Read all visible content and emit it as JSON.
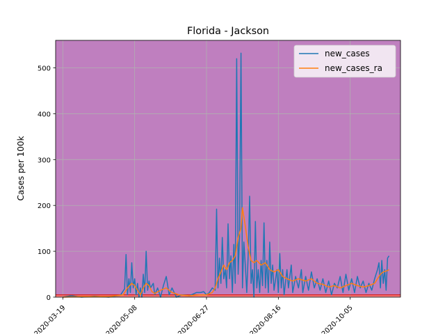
{
  "chart_data": {
    "type": "line",
    "title": "Florida - Jackson",
    "xlabel": "",
    "ylabel": "Cases per 100k",
    "x_ticks": [
      "2020-03-19",
      "2020-05-08",
      "2020-06-27",
      "2020-08-16",
      "2020-10-05"
    ],
    "x_range": [
      "2020-03-14",
      "2020-11-09"
    ],
    "ylim": [
      0,
      560
    ],
    "y_ticks": [
      0,
      100,
      200,
      300,
      400,
      500
    ],
    "grid": true,
    "legend_position": "top-right",
    "background_band": {
      "color": "#bf7fbf",
      "from": 5,
      "to": 560
    },
    "low_band": {
      "color": "#ff8080",
      "from": 0,
      "to": 5
    },
    "threshold_line": {
      "value": 5,
      "color": "#d62728"
    },
    "colors": {
      "new_cases": "#1f77b4",
      "new_cases_ra": "#ff7f0e"
    },
    "series": [
      {
        "name": "new_cases",
        "points": [
          [
            "2020-03-19",
            0
          ],
          [
            "2020-03-25",
            3
          ],
          [
            "2020-04-01",
            0
          ],
          [
            "2020-04-10",
            2
          ],
          [
            "2020-04-20",
            0
          ],
          [
            "2020-04-28",
            4
          ],
          [
            "2020-05-01",
            18
          ],
          [
            "2020-05-02",
            93
          ],
          [
            "2020-05-03",
            5
          ],
          [
            "2020-05-04",
            40
          ],
          [
            "2020-05-05",
            10
          ],
          [
            "2020-05-06",
            75
          ],
          [
            "2020-05-07",
            20
          ],
          [
            "2020-05-08",
            40
          ],
          [
            "2020-05-09",
            5
          ],
          [
            "2020-05-10",
            30
          ],
          [
            "2020-05-11",
            0
          ],
          [
            "2020-05-12",
            20
          ],
          [
            "2020-05-13",
            0
          ],
          [
            "2020-05-14",
            50
          ],
          [
            "2020-05-15",
            10
          ],
          [
            "2020-05-16",
            100
          ],
          [
            "2020-05-17",
            15
          ],
          [
            "2020-05-18",
            35
          ],
          [
            "2020-05-19",
            20
          ],
          [
            "2020-05-21",
            30
          ],
          [
            "2020-05-22",
            5
          ],
          [
            "2020-05-24",
            20
          ],
          [
            "2020-05-26",
            0
          ],
          [
            "2020-05-28",
            25
          ],
          [
            "2020-05-30",
            45
          ],
          [
            "2020-06-01",
            5
          ],
          [
            "2020-06-03",
            20
          ],
          [
            "2020-06-06",
            0
          ],
          [
            "2020-06-10",
            5
          ],
          [
            "2020-06-15",
            3
          ],
          [
            "2020-06-20",
            10
          ],
          [
            "2020-06-23",
            10
          ],
          [
            "2020-06-25",
            12
          ],
          [
            "2020-06-27",
            5
          ],
          [
            "2020-06-29",
            10
          ],
          [
            "2020-07-01",
            20
          ],
          [
            "2020-07-03",
            15
          ],
          [
            "2020-07-04",
            192
          ],
          [
            "2020-07-05",
            20
          ],
          [
            "2020-07-06",
            85
          ],
          [
            "2020-07-07",
            30
          ],
          [
            "2020-07-08",
            130
          ],
          [
            "2020-07-09",
            40
          ],
          [
            "2020-07-10",
            60
          ],
          [
            "2020-07-11",
            20
          ],
          [
            "2020-07-12",
            160
          ],
          [
            "2020-07-13",
            40
          ],
          [
            "2020-07-14",
            90
          ],
          [
            "2020-07-15",
            10
          ],
          [
            "2020-07-16",
            115
          ],
          [
            "2020-07-17",
            30
          ],
          [
            "2020-07-18",
            520
          ],
          [
            "2020-07-19",
            50
          ],
          [
            "2020-07-20",
            130
          ],
          [
            "2020-07-21",
            532
          ],
          [
            "2020-07-22",
            20
          ],
          [
            "2020-07-23",
            120
          ],
          [
            "2020-07-24",
            70
          ],
          [
            "2020-07-25",
            10
          ],
          [
            "2020-07-26",
            90
          ],
          [
            "2020-07-27",
            220
          ],
          [
            "2020-07-28",
            30
          ],
          [
            "2020-07-29",
            60
          ],
          [
            "2020-07-30",
            0
          ],
          [
            "2020-07-31",
            165
          ],
          [
            "2020-08-01",
            20
          ],
          [
            "2020-08-02",
            60
          ],
          [
            "2020-08-03",
            10
          ],
          [
            "2020-08-04",
            80
          ],
          [
            "2020-08-05",
            25
          ],
          [
            "2020-08-06",
            162
          ],
          [
            "2020-08-07",
            20
          ],
          [
            "2020-08-08",
            80
          ],
          [
            "2020-08-09",
            10
          ],
          [
            "2020-08-10",
            120
          ],
          [
            "2020-08-11",
            30
          ],
          [
            "2020-08-12",
            70
          ],
          [
            "2020-08-13",
            15
          ],
          [
            "2020-08-15",
            60
          ],
          [
            "2020-08-16",
            10
          ],
          [
            "2020-08-17",
            95
          ],
          [
            "2020-08-18",
            20
          ],
          [
            "2020-08-19",
            60
          ],
          [
            "2020-08-20",
            5
          ],
          [
            "2020-08-22",
            60
          ],
          [
            "2020-08-23",
            20
          ],
          [
            "2020-08-25",
            70
          ],
          [
            "2020-08-26",
            10
          ],
          [
            "2020-08-28",
            45
          ],
          [
            "2020-08-30",
            20
          ],
          [
            "2020-09-01",
            60
          ],
          [
            "2020-09-02",
            10
          ],
          [
            "2020-09-04",
            45
          ],
          [
            "2020-09-06",
            15
          ],
          [
            "2020-09-08",
            55
          ],
          [
            "2020-09-10",
            20
          ],
          [
            "2020-09-12",
            40
          ],
          [
            "2020-09-14",
            15
          ],
          [
            "2020-09-16",
            40
          ],
          [
            "2020-09-18",
            10
          ],
          [
            "2020-09-20",
            35
          ],
          [
            "2020-09-22",
            5
          ],
          [
            "2020-09-24",
            30
          ],
          [
            "2020-09-26",
            20
          ],
          [
            "2020-09-28",
            45
          ],
          [
            "2020-09-30",
            10
          ],
          [
            "2020-10-02",
            50
          ],
          [
            "2020-10-04",
            15
          ],
          [
            "2020-10-06",
            40
          ],
          [
            "2020-10-08",
            10
          ],
          [
            "2020-10-10",
            45
          ],
          [
            "2020-10-12",
            20
          ],
          [
            "2020-10-14",
            35
          ],
          [
            "2020-10-16",
            10
          ],
          [
            "2020-10-18",
            30
          ],
          [
            "2020-10-20",
            15
          ],
          [
            "2020-10-22",
            40
          ],
          [
            "2020-10-24",
            60
          ],
          [
            "2020-10-25",
            75
          ],
          [
            "2020-10-26",
            20
          ],
          [
            "2020-10-27",
            80
          ],
          [
            "2020-10-28",
            30
          ],
          [
            "2020-10-29",
            60
          ],
          [
            "2020-10-30",
            15
          ],
          [
            "2020-10-31",
            85
          ],
          [
            "2020-11-01",
            90
          ]
        ]
      },
      {
        "name": "new_cases_ra",
        "points": [
          [
            "2020-03-19",
            0
          ],
          [
            "2020-04-01",
            1
          ],
          [
            "2020-04-20",
            1
          ],
          [
            "2020-04-30",
            5
          ],
          [
            "2020-05-03",
            20
          ],
          [
            "2020-05-06",
            30
          ],
          [
            "2020-05-08",
            25
          ],
          [
            "2020-05-10",
            15
          ],
          [
            "2020-05-12",
            5
          ],
          [
            "2020-05-14",
            20
          ],
          [
            "2020-05-16",
            30
          ],
          [
            "2020-05-18",
            25
          ],
          [
            "2020-05-20",
            12
          ],
          [
            "2020-05-22",
            8
          ],
          [
            "2020-05-26",
            15
          ],
          [
            "2020-05-30",
            20
          ],
          [
            "2020-06-03",
            10
          ],
          [
            "2020-06-08",
            5
          ],
          [
            "2020-06-15",
            3
          ],
          [
            "2020-06-22",
            5
          ],
          [
            "2020-06-27",
            5
          ],
          [
            "2020-07-01",
            10
          ],
          [
            "2020-07-03",
            20
          ],
          [
            "2020-07-05",
            40
          ],
          [
            "2020-07-07",
            55
          ],
          [
            "2020-07-09",
            70
          ],
          [
            "2020-07-11",
            60
          ],
          [
            "2020-07-13",
            75
          ],
          [
            "2020-07-15",
            80
          ],
          [
            "2020-07-17",
            90
          ],
          [
            "2020-07-19",
            130
          ],
          [
            "2020-07-20",
            140
          ],
          [
            "2020-07-21",
            150
          ],
          [
            "2020-07-22",
            195
          ],
          [
            "2020-07-23",
            175
          ],
          [
            "2020-07-24",
            155
          ],
          [
            "2020-07-26",
            110
          ],
          [
            "2020-07-28",
            80
          ],
          [
            "2020-07-30",
            75
          ],
          [
            "2020-08-01",
            80
          ],
          [
            "2020-08-04",
            70
          ],
          [
            "2020-08-07",
            75
          ],
          [
            "2020-08-10",
            60
          ],
          [
            "2020-08-13",
            55
          ],
          [
            "2020-08-16",
            60
          ],
          [
            "2020-08-19",
            45
          ],
          [
            "2020-08-22",
            40
          ],
          [
            "2020-08-26",
            35
          ],
          [
            "2020-08-30",
            40
          ],
          [
            "2020-09-04",
            35
          ],
          [
            "2020-09-08",
            40
          ],
          [
            "2020-09-12",
            30
          ],
          [
            "2020-09-16",
            28
          ],
          [
            "2020-09-20",
            22
          ],
          [
            "2020-09-24",
            25
          ],
          [
            "2020-09-28",
            20
          ],
          [
            "2020-10-02",
            25
          ],
          [
            "2020-10-06",
            30
          ],
          [
            "2020-10-10",
            25
          ],
          [
            "2020-10-14",
            22
          ],
          [
            "2020-10-18",
            25
          ],
          [
            "2020-10-22",
            30
          ],
          [
            "2020-10-26",
            50
          ],
          [
            "2020-10-28",
            55
          ],
          [
            "2020-10-31",
            58
          ],
          [
            "2020-11-01",
            60
          ]
        ]
      }
    ]
  }
}
